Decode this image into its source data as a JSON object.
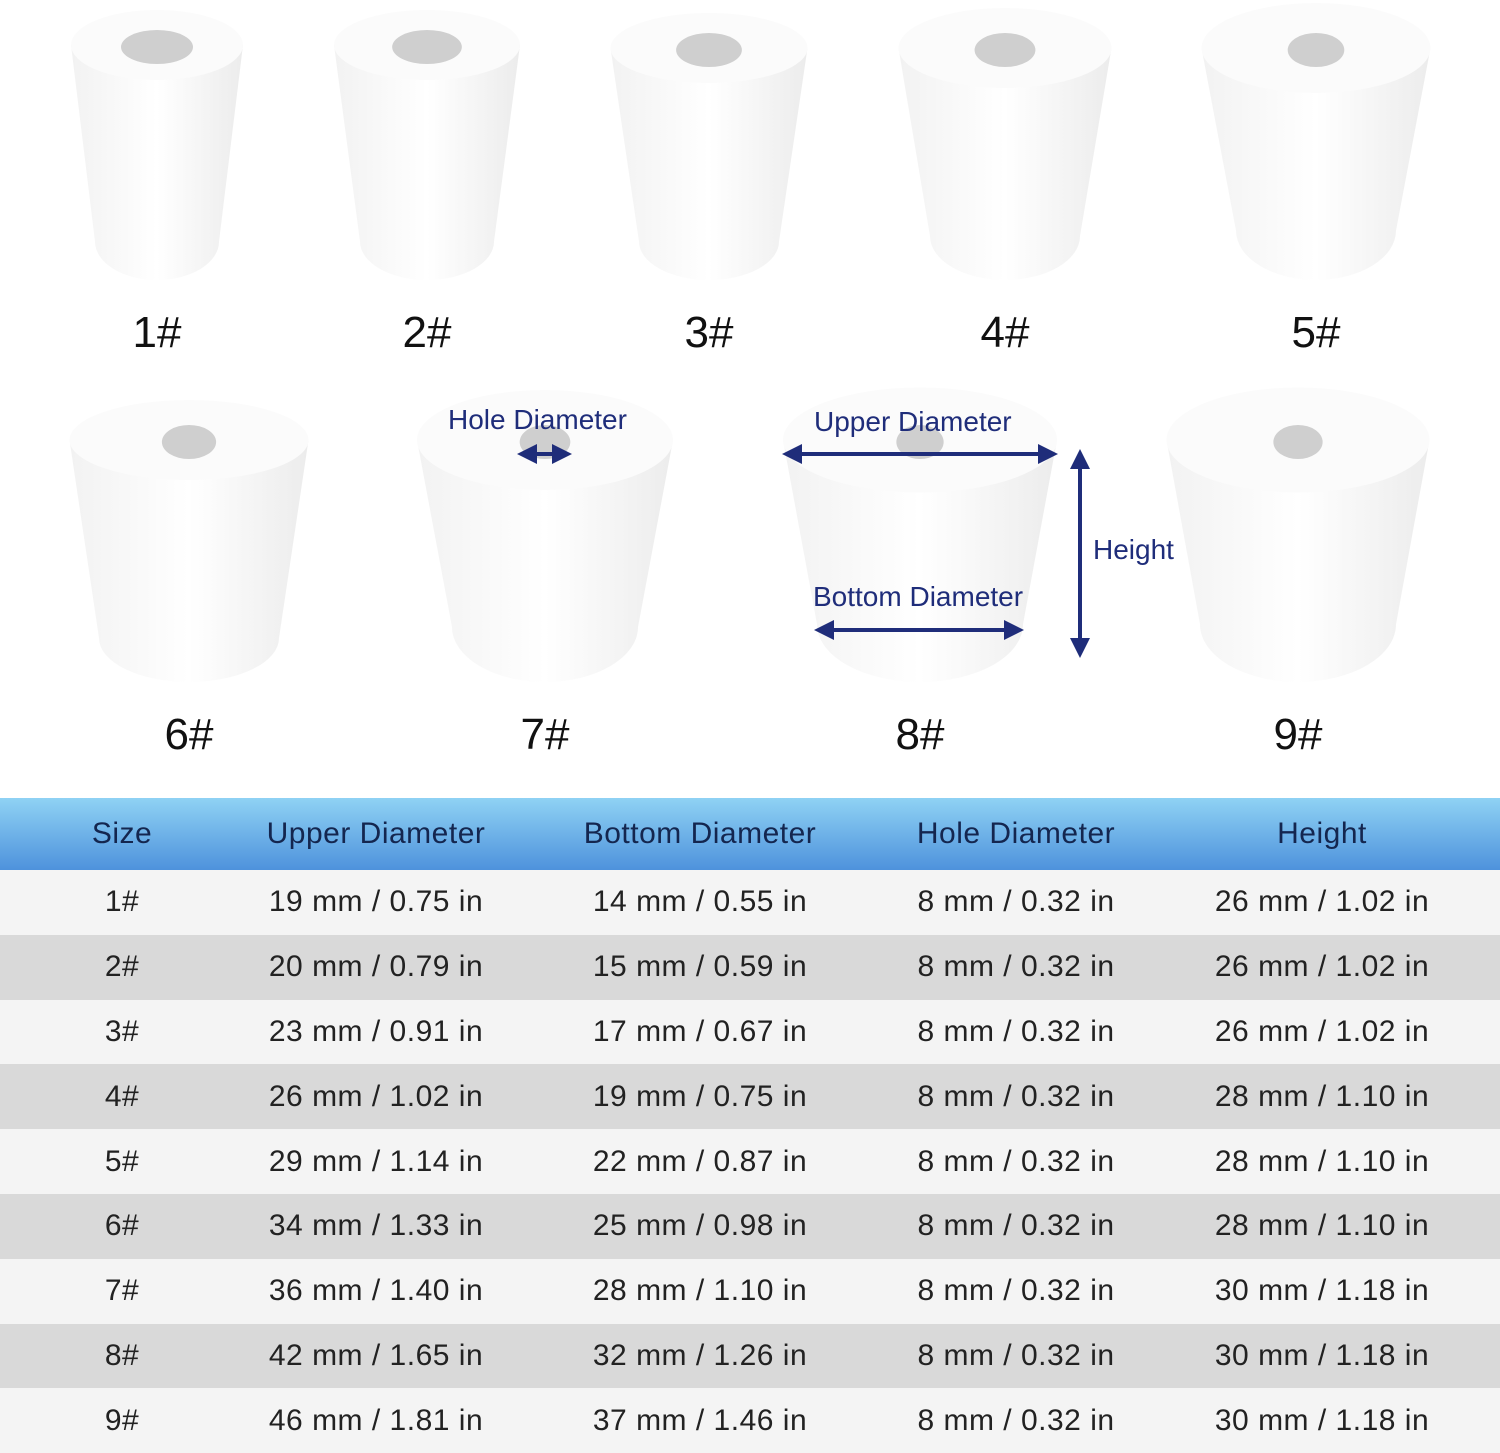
{
  "stoppers": [
    {
      "label": "1#"
    },
    {
      "label": "2#"
    },
    {
      "label": "3#"
    },
    {
      "label": "4#"
    },
    {
      "label": "5#"
    },
    {
      "label": "6#"
    },
    {
      "label": "7#"
    },
    {
      "label": "8#"
    },
    {
      "label": "9#"
    }
  ],
  "annotations": {
    "hole_diameter": "Hole Diameter",
    "upper_diameter": "Upper Diameter",
    "bottom_diameter": "Bottom Diameter",
    "height": "Height",
    "color": "#1f2d7a"
  },
  "table": {
    "headers": [
      "Size",
      "Upper Diameter",
      "Bottom Diameter",
      "Hole Diameter",
      "Height"
    ],
    "header_gradient": [
      "#8fd2f4",
      "#4e92dc"
    ],
    "rows": [
      [
        "1#",
        "19 mm / 0.75 in",
        "14 mm / 0.55 in",
        "8 mm / 0.32 in",
        "26 mm / 1.02 in"
      ],
      [
        "2#",
        "20 mm / 0.79 in",
        "15 mm / 0.59 in",
        "8 mm / 0.32 in",
        "26 mm / 1.02 in"
      ],
      [
        "3#",
        "23 mm / 0.91 in",
        "17 mm / 0.67 in",
        "8 mm / 0.32 in",
        "26 mm / 1.02 in"
      ],
      [
        "4#",
        "26 mm / 1.02 in",
        "19 mm / 0.75 in",
        "8 mm / 0.32 in",
        "28 mm / 1.10 in"
      ],
      [
        "5#",
        "29 mm / 1.14 in",
        "22 mm / 0.87 in",
        "8 mm / 0.32 in",
        "28 mm / 1.10 in"
      ],
      [
        "6#",
        "34 mm / 1.33 in",
        "25 mm / 0.98 in",
        "8 mm / 0.32 in",
        "28 mm / 1.10 in"
      ],
      [
        "7#",
        "36 mm / 1.40 in",
        "28 mm / 1.10 in",
        "8 mm / 0.32 in",
        "30 mm / 1.18 in"
      ],
      [
        "8#",
        "42 mm / 1.65 in",
        "32 mm / 1.26 in",
        "8 mm / 0.32 in",
        "30 mm / 1.18 in"
      ],
      [
        "9#",
        "46 mm / 1.81 in",
        "37 mm / 1.46 in",
        "8 mm / 0.32 in",
        "30 mm / 1.18 in"
      ]
    ]
  }
}
